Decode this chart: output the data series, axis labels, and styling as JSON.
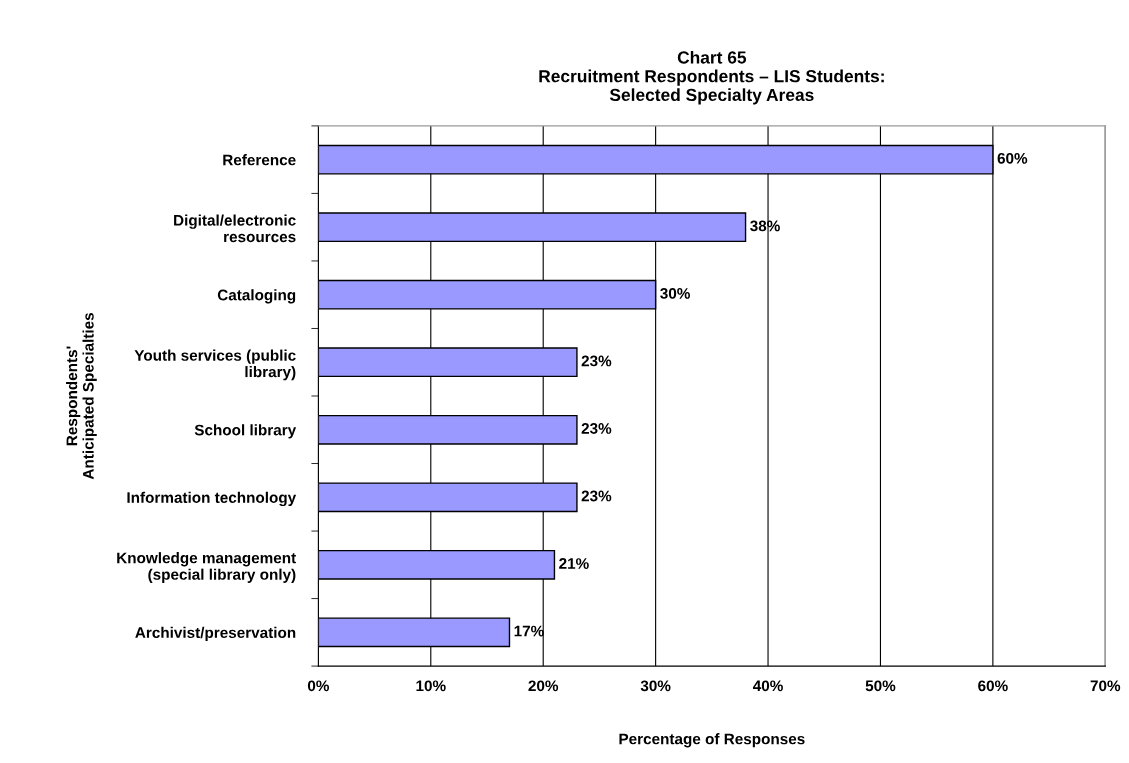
{
  "chart_data": {
    "type": "bar",
    "orientation": "horizontal",
    "title": "Chart 65\nRecruitment Respondents – LIS Students:\nSelected Specialty Areas",
    "xlabel": "Percentage of Responses",
    "ylabel": "Respondents'\nAnticipated Specialties",
    "categories": [
      "Reference",
      "Digital/electronic\nresources",
      "Cataloging",
      "Youth services (public\nlibrary)",
      "School library",
      "Information technology",
      "Knowledge management\n(special library only)",
      "Archivist/preservation"
    ],
    "values": [
      60,
      38,
      30,
      23,
      23,
      23,
      21,
      17
    ],
    "value_labels": [
      "60%",
      "38%",
      "30%",
      "23%",
      "23%",
      "23%",
      "21%",
      "17%"
    ],
    "color": "#9999ff",
    "xlim": [
      0,
      70
    ],
    "xticks": [
      {
        "value": 0,
        "label": "0%"
      },
      {
        "value": 10,
        "label": "10%"
      },
      {
        "value": 20,
        "label": "20%"
      },
      {
        "value": 30,
        "label": "30%"
      },
      {
        "value": 40,
        "label": "40%"
      },
      {
        "value": 50,
        "label": "50%"
      },
      {
        "value": 60,
        "label": "60%"
      },
      {
        "value": 70,
        "label": "70%"
      }
    ],
    "grid": "x",
    "legend": false
  }
}
